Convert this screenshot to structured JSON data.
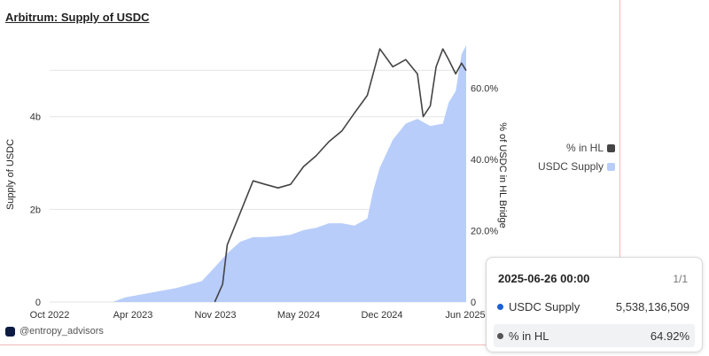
{
  "chart_data": {
    "type": "area",
    "title": "Arbitrum: Supply of USDC",
    "xlabel": "",
    "ylabel_left": "Supply of USDC",
    "ylabel_right": "% of USDC in HL Bridge",
    "x_ticks": [
      "Oct 2022",
      "Apr 2023",
      "Nov 2023",
      "May 2024",
      "Dec 2024",
      "Jun 2025"
    ],
    "y_left_ticks": [
      "0",
      "2b",
      "4b"
    ],
    "y_right_ticks": [
      "0",
      "20.0%",
      "40.0%",
      "60.0%"
    ],
    "ylim_left": [
      0,
      5600000000
    ],
    "ylim_right": [
      0,
      0.728
    ],
    "grid": true,
    "legend_position": "right",
    "series": [
      {
        "name": "USDC Supply",
        "kind": "area",
        "axis": "left",
        "color": "#b8cdfa",
        "x": [
          "2023-03-01",
          "2023-04-01",
          "2023-06-01",
          "2023-08-01",
          "2023-10-01",
          "2023-11-01",
          "2023-12-01",
          "2024-01-01",
          "2024-02-01",
          "2024-03-01",
          "2024-04-01",
          "2024-05-01",
          "2024-06-01",
          "2024-07-01",
          "2024-08-01",
          "2024-09-01",
          "2024-10-01",
          "2024-11-01",
          "2024-11-15",
          "2024-12-01",
          "2025-01-01",
          "2025-02-01",
          "2025-03-01",
          "2025-04-01",
          "2025-05-01",
          "2025-05-15",
          "2025-06-01",
          "2025-06-15",
          "2025-06-26"
        ],
        "values": [
          0,
          100000000,
          200000000,
          300000000,
          450000000,
          750000000,
          1050000000,
          1300000000,
          1400000000,
          1400000000,
          1420000000,
          1450000000,
          1550000000,
          1600000000,
          1700000000,
          1700000000,
          1650000000,
          1800000000,
          2400000000,
          2900000000,
          3500000000,
          3850000000,
          3950000000,
          3800000000,
          3850000000,
          4300000000,
          4550000000,
          5350000000,
          5538136509
        ]
      },
      {
        "name": "% in HL",
        "kind": "line",
        "axis": "right",
        "color": "#444444",
        "x": [
          "2023-11-01",
          "2023-11-20",
          "2023-12-01",
          "2024-01-01",
          "2024-02-01",
          "2024-03-01",
          "2024-04-01",
          "2024-05-01",
          "2024-06-01",
          "2024-07-01",
          "2024-08-01",
          "2024-09-01",
          "2024-10-01",
          "2024-11-01",
          "2024-12-01",
          "2025-01-01",
          "2025-02-01",
          "2025-03-01",
          "2025-03-15",
          "2025-04-01",
          "2025-04-15",
          "2025-05-01",
          "2025-05-15",
          "2025-06-01",
          "2025-06-15",
          "2025-06-26"
        ],
        "values": [
          0,
          0.05,
          0.16,
          0.25,
          0.34,
          0.33,
          0.32,
          0.33,
          0.38,
          0.41,
          0.45,
          0.48,
          0.53,
          0.58,
          0.71,
          0.66,
          0.68,
          0.64,
          0.52,
          0.55,
          0.66,
          0.71,
          0.68,
          0.64,
          0.67,
          0.6492
        ]
      }
    ]
  },
  "legend": {
    "items": [
      {
        "label": "% in HL",
        "color": "#444444"
      },
      {
        "label": "USDC Supply",
        "color": "#b8cdfa"
      }
    ]
  },
  "watermark": "@entropy_advisors",
  "tooltip": {
    "date": "2025-06-26 00:00",
    "page": "1/1",
    "rows": [
      {
        "label": "USDC Supply",
        "value": "5,538,136,509",
        "dot_color": "#1a5fd6"
      },
      {
        "label": "% in HL",
        "value": "64.92%",
        "dot_color": "#555555"
      }
    ]
  }
}
